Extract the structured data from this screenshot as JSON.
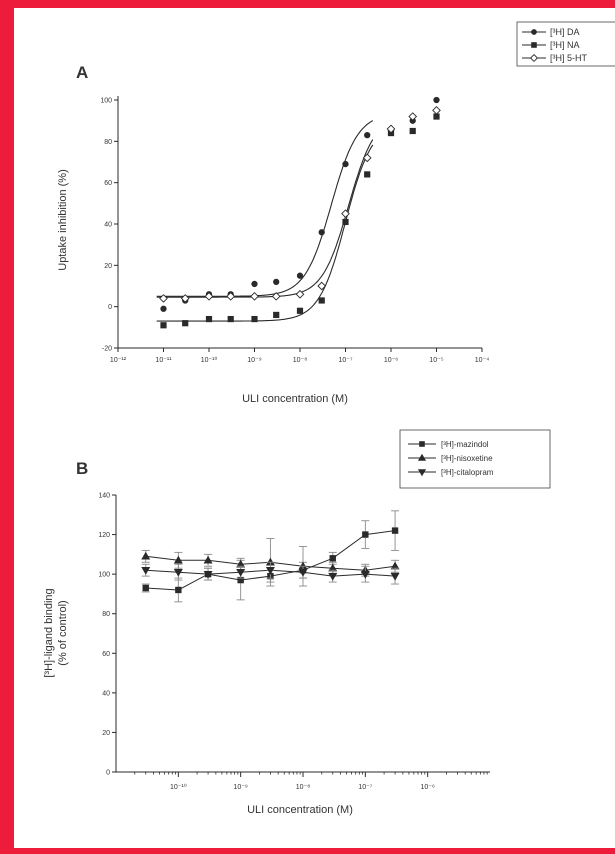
{
  "colors": {
    "frame": "#ee1c3b",
    "ink": "#2a2a2a",
    "error": "#8a8a8a"
  },
  "chart_data": [
    {
      "panel": "A",
      "type": "line",
      "xlabel": "ULI concentration (M)",
      "ylabel": "Uptake inhibition (%)",
      "xscale": "log",
      "xlim": [
        1e-12,
        0.0001
      ],
      "ylim": [
        -20,
        100
      ],
      "yticks": [
        -20,
        0,
        20,
        40,
        60,
        80,
        100
      ],
      "xtick_labels": [
        "10⁻¹²",
        "10⁻¹¹",
        "10⁻¹⁰",
        "10⁻⁹",
        "10⁻⁸",
        "10⁻⁷",
        "10⁻⁶",
        "10⁻⁵",
        "10⁻⁴"
      ],
      "legend_position": "top-right",
      "series": [
        {
          "name": "[³H] DA",
          "marker": "circle",
          "x": [
            1e-11,
            3e-11,
            1e-10,
            3e-10,
            1e-09,
            3e-09,
            1e-08,
            3e-08,
            1e-07,
            3e-07,
            1e-06,
            3e-06,
            1e-05
          ],
          "y": [
            -1,
            3,
            6,
            6,
            11,
            12,
            15,
            36,
            69,
            83,
            85,
            90,
            100
          ]
        },
        {
          "name": "[³H] NA",
          "marker": "square",
          "x": [
            1e-11,
            3e-11,
            1e-10,
            3e-10,
            1e-09,
            3e-09,
            1e-08,
            3e-08,
            1e-07,
            3e-07,
            1e-06,
            3e-06,
            1e-05
          ],
          "y": [
            -9,
            -8,
            -6,
            -6,
            -6,
            -4,
            -2,
            3,
            41,
            64,
            84,
            85,
            92
          ]
        },
        {
          "name": "[³H] 5-HT",
          "marker": "open-diamond",
          "x": [
            1e-11,
            3e-11,
            1e-10,
            3e-10,
            1e-09,
            3e-09,
            1e-08,
            3e-08,
            1e-07,
            3e-07,
            1e-06,
            3e-06,
            1e-05
          ],
          "y": [
            4,
            4,
            5,
            5,
            5,
            5,
            6,
            10,
            45,
            72,
            86,
            92,
            95
          ]
        }
      ]
    },
    {
      "panel": "B",
      "type": "line",
      "xlabel": "ULI concentration (M)",
      "ylabel_lines": [
        "[³H]-ligand binding",
        "(% of control)"
      ],
      "xscale": "log",
      "xlim": [
        1e-11,
        1e-05
      ],
      "ylim": [
        0,
        140
      ],
      "yticks": [
        0,
        20,
        40,
        60,
        80,
        100,
        120,
        140
      ],
      "xtick_labels": [
        "10⁻¹⁰",
        "10⁻⁹",
        "10⁻⁸",
        "10⁻⁷",
        "10⁻⁶"
      ],
      "xtick_values": [
        1e-10,
        1e-09,
        1e-08,
        1e-07,
        1e-06
      ],
      "legend_position": "top-right",
      "series": [
        {
          "name": "[³H]-mazindol",
          "marker": "square",
          "x": [
            3e-11,
            1e-10,
            3e-10,
            1e-09,
            3e-09,
            1e-08,
            3e-08,
            1e-07,
            3e-07
          ],
          "y": [
            93,
            92,
            100,
            97,
            99,
            102,
            108,
            120,
            122
          ],
          "err": [
            2,
            6,
            3,
            10,
            3,
            4,
            3,
            7,
            10
          ]
        },
        {
          "name": "[³H]-nisoxetine",
          "marker": "triangle-up",
          "x": [
            3e-11,
            1e-10,
            3e-10,
            1e-09,
            3e-09,
            1e-08,
            3e-08,
            1e-07,
            3e-07
          ],
          "y": [
            109,
            107,
            107,
            105,
            106,
            104,
            103,
            102,
            104
          ],
          "err": [
            3,
            4,
            3,
            3,
            12,
            10,
            3,
            3,
            3
          ]
        },
        {
          "name": "[³H]-citalopram",
          "marker": "triangle-down",
          "x": [
            3e-11,
            1e-10,
            3e-10,
            1e-09,
            3e-09,
            1e-08,
            3e-08,
            1e-07,
            3e-07
          ],
          "y": [
            102,
            101,
            100,
            101,
            102,
            101,
            99,
            100,
            99
          ],
          "err": [
            3,
            4,
            3,
            3,
            4,
            3,
            3,
            4,
            4
          ]
        }
      ]
    }
  ]
}
